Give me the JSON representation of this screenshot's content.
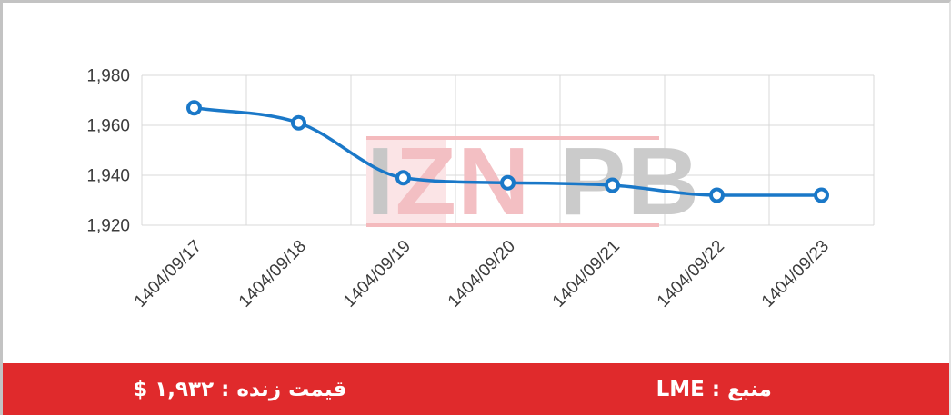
{
  "chart_data": {
    "type": "line",
    "title": "",
    "categories": [
      "1404/09/17",
      "1404/09/18",
      "1404/09/19",
      "1404/09/20",
      "1404/09/21",
      "1404/09/22",
      "1404/09/23"
    ],
    "values": [
      1967,
      1961,
      1939,
      1937,
      1936,
      1932,
      1932
    ],
    "ylim": [
      1920,
      1980
    ],
    "yticks": [
      1980,
      1960,
      1940,
      1920
    ],
    "ytick_labels": [
      "1,980",
      "1,960",
      "1,940",
      "1,920"
    ],
    "xlabel": "",
    "ylabel": "",
    "grid": true,
    "legend": "none",
    "line_color": "#1a78c8",
    "marker_fill": "#ffffff",
    "marker_stroke": "#1a78c8",
    "grid_color": "#d9d9d9",
    "axis_text_color": "#3c3c3c"
  },
  "watermark": {
    "text": "IZNPB",
    "letters": [
      {
        "char": "I",
        "color": "#c7c7c7",
        "gap_before": false
      },
      {
        "char": "Z",
        "color": "#f3bfc3",
        "gap_before": false
      },
      {
        "char": "N",
        "color": "#f3bfc3",
        "gap_before": false
      },
      {
        "char": "P",
        "color": "#cbcbcb",
        "gap_before": true
      },
      {
        "char": "B",
        "color": "#cbcbcb",
        "gap_before": false
      }
    ],
    "bar_color": "#f4babd",
    "panel_color": "#fbe4e6"
  },
  "footer": {
    "background": "#e02a2c",
    "live_price_text": "قیمت زنده : ۱,۹۳۲ $",
    "live_price_value": "۱,۹۳۲",
    "source_text": "منبع : LME",
    "source_value": "LME",
    "text_color": "#ffffff"
  }
}
